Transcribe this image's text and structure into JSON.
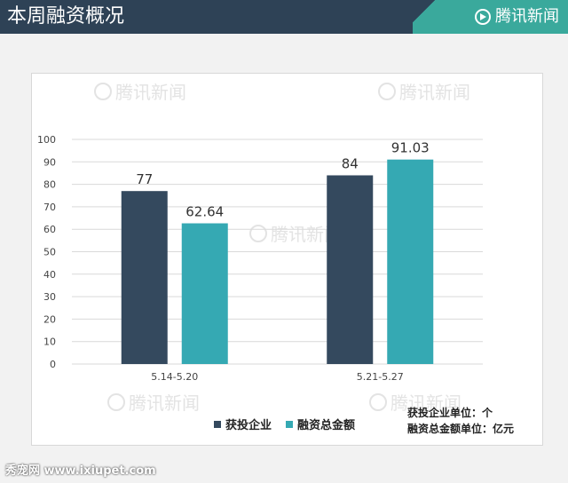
{
  "header": {
    "title": "本周融资概况",
    "brand": "腾讯新闻",
    "brand_icon": "tencent-news-logo-icon",
    "bg_color": "#2e4256",
    "brand_color": "#3aa99c"
  },
  "watermark_text": "腾讯新闻",
  "chart_data": {
    "type": "bar",
    "categories": [
      "5.14-5.20",
      "5.21-5.27"
    ],
    "series": [
      {
        "name": "获投企业",
        "values": [
          77,
          84
        ],
        "color": "#34495e"
      },
      {
        "name": "融资总金额",
        "values": [
          62.64,
          91.03
        ],
        "color": "#35a9b3"
      }
    ],
    "data_labels": [
      [
        "77",
        "84"
      ],
      [
        "62.64",
        "91.03"
      ]
    ],
    "y_ticks": [
      "0",
      "10",
      "20",
      "30",
      "40",
      "50",
      "60",
      "70",
      "80",
      "90",
      "100"
    ],
    "ylim": [
      0,
      100
    ],
    "grid": true,
    "legend_position": "bottom"
  },
  "notes": {
    "line1": "获投企业单位：个",
    "line2": "融资总金额单位：亿元"
  },
  "footer": {
    "site": "秀宠网 www.ixiupet.com"
  }
}
